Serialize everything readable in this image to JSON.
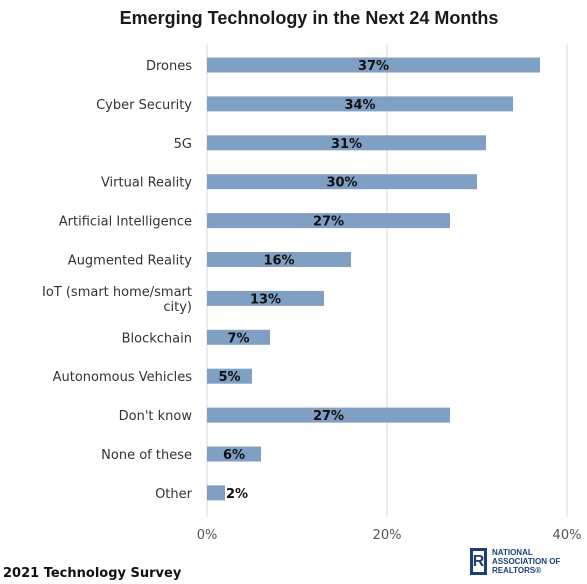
{
  "chart_data": {
    "type": "bar",
    "orientation": "horizontal",
    "title": "Emerging Technology in the Next 24 Months",
    "categories": [
      [
        "Drones"
      ],
      [
        "Cyber Security"
      ],
      [
        "5G"
      ],
      [
        "Virtual Reality"
      ],
      [
        "Artificial Intelligence"
      ],
      [
        "Augmented Reality"
      ],
      [
        "IoT (smart home/smart",
        "city)"
      ],
      [
        "Blockchain"
      ],
      [
        "Autonomous Vehicles"
      ],
      [
        "Don't know"
      ],
      [
        "None of these"
      ],
      [
        "Other"
      ]
    ],
    "values": [
      37,
      34,
      31,
      30,
      27,
      16,
      13,
      7,
      5,
      27,
      6,
      2
    ],
    "data_labels": [
      "37%",
      "34%",
      "31%",
      "30%",
      "27%",
      "16%",
      "13%",
      "7%",
      "5%",
      "27%",
      "6%",
      "2%"
    ],
    "xlim": [
      0,
      40
    ],
    "ticks": [
      0,
      20,
      40
    ],
    "tick_labels": [
      "0%",
      "20%",
      "40%"
    ],
    "bar_color": "#7f9fc3",
    "grid": true
  },
  "footer": {
    "survey_label": "2021 Technology Survey"
  },
  "logo": {
    "mark": "R",
    "lines": [
      "NATIONAL",
      "ASSOCIATION OF",
      "REALTORS®"
    ]
  }
}
